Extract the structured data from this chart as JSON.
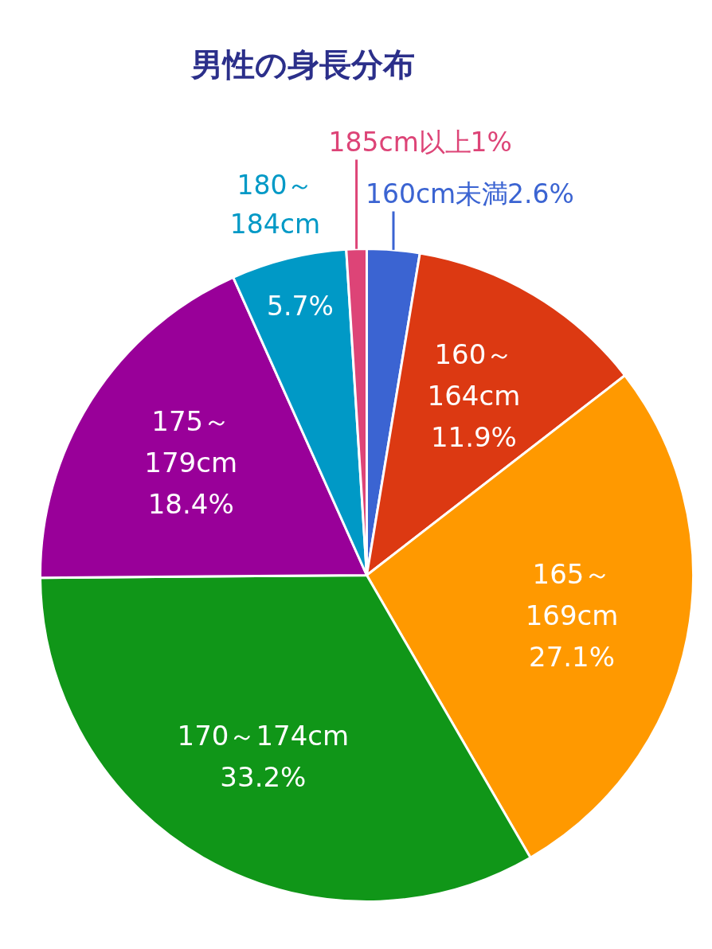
{
  "chart_data": {
    "type": "pie",
    "title": "男性の身長分布",
    "categories": [
      "160cm未満",
      "160～\n164cm",
      "165～\n169cm",
      "170～174cm",
      "175～\n179cm",
      "180～\n184cm",
      "185cm以上"
    ],
    "values": [
      2.6,
      11.9,
      27.1,
      33.2,
      18.4,
      5.7,
      1
    ],
    "colors": [
      "#3b64d2",
      "#dc3912",
      "#ff9900",
      "#109618",
      "#990099",
      "#0099c6",
      "#dd4477"
    ],
    "value_labels": [
      "2.6%",
      "11.9%",
      "27.1%",
      "33.2%",
      "18.4%",
      "5.7%",
      "1%"
    ]
  }
}
